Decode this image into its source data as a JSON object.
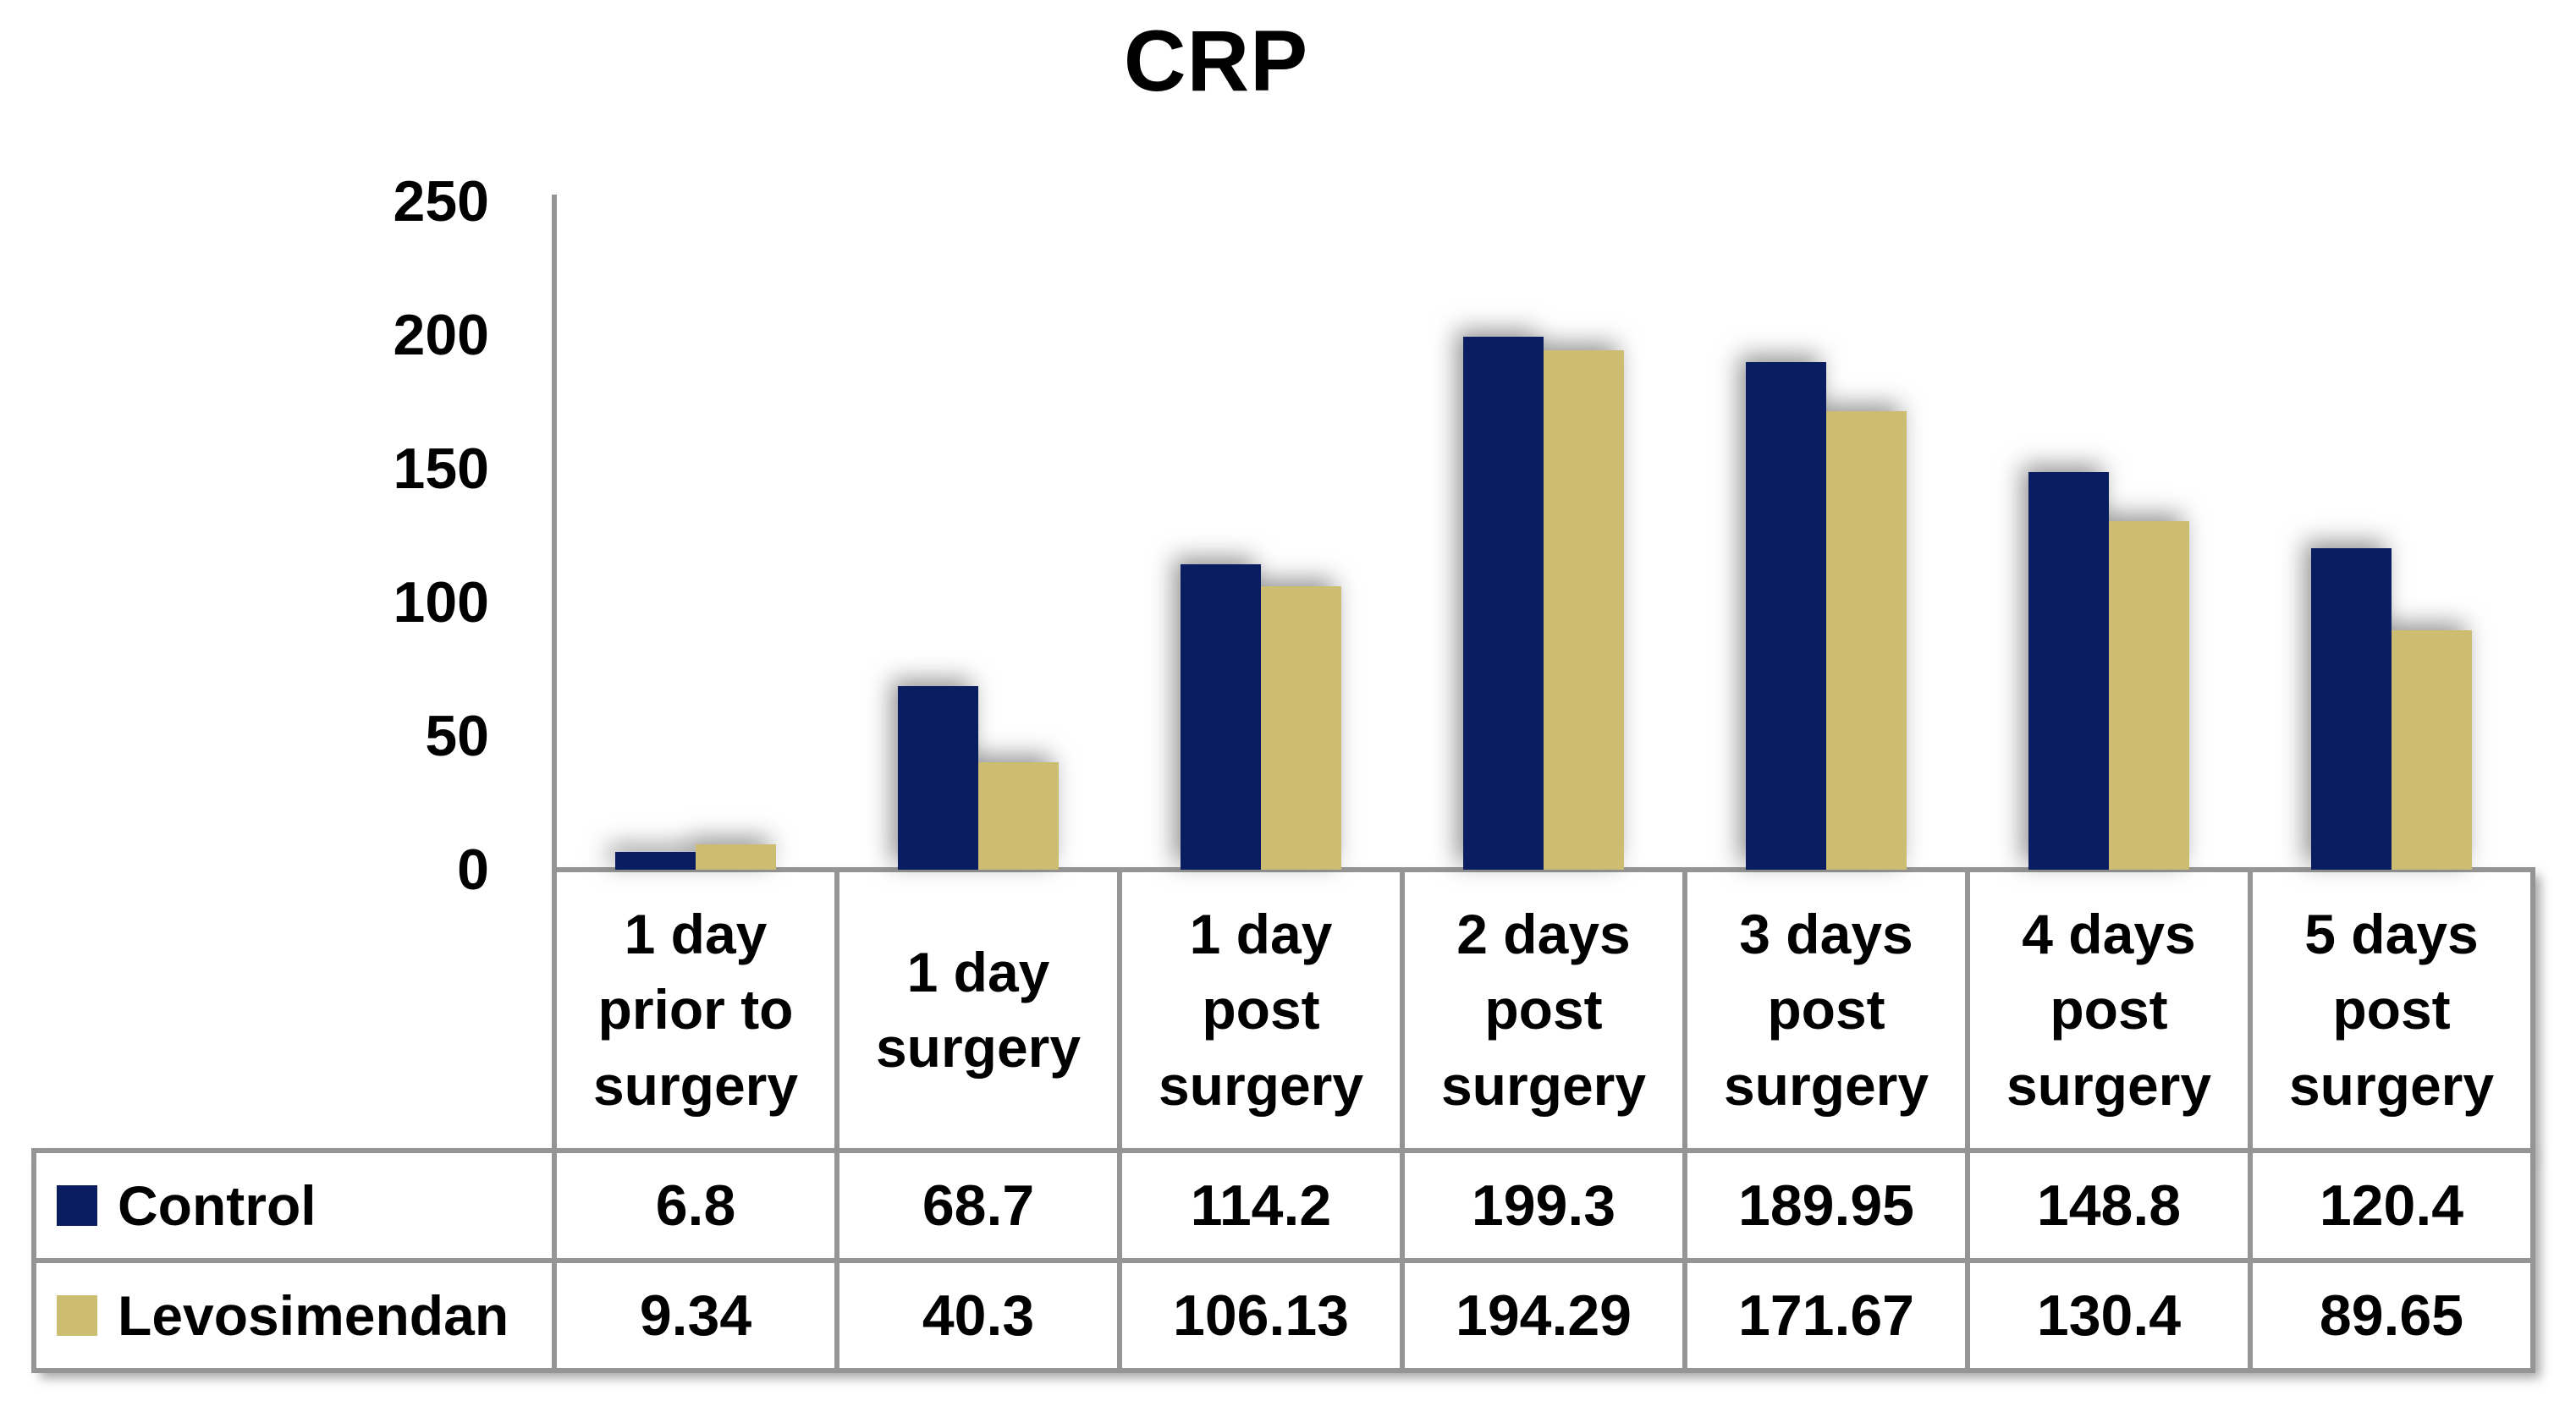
{
  "chart_data": {
    "type": "bar",
    "title": "CRP",
    "categories": [
      "1 day prior to surgery",
      "1 day surgery",
      "1 day post surgery",
      "2 days post surgery",
      "3 days post surgery",
      "4 days post surgery",
      "5 days post surgery"
    ],
    "series": [
      {
        "name": "Control",
        "color": "#0A1D61",
        "values": [
          6.8,
          68.7,
          114.2,
          199.3,
          189.95,
          148.8,
          120.4
        ]
      },
      {
        "name": "Levosimendan",
        "color": "#CDBD73",
        "values": [
          9.34,
          40.3,
          106.13,
          194.29,
          171.67,
          130.4,
          89.65
        ]
      }
    ],
    "value_labels": [
      [
        "6.8",
        "68.7",
        "114.2",
        "199.3",
        "189.95",
        "148.8",
        "120.4"
      ],
      [
        "9.34",
        "40.3",
        "106.13",
        "194.29",
        "171.67",
        "130.4",
        "89.65"
      ]
    ],
    "ylim": [
      0,
      250
    ],
    "yticks": [
      "0",
      "50",
      "100",
      "150",
      "200",
      "250"
    ],
    "grid": false,
    "legend_position": "table-left",
    "colors": {
      "control_navy": "#0A1D61",
      "levosimendan_khaki": "#CDBD73",
      "table_border_gray": "#959595"
    }
  }
}
